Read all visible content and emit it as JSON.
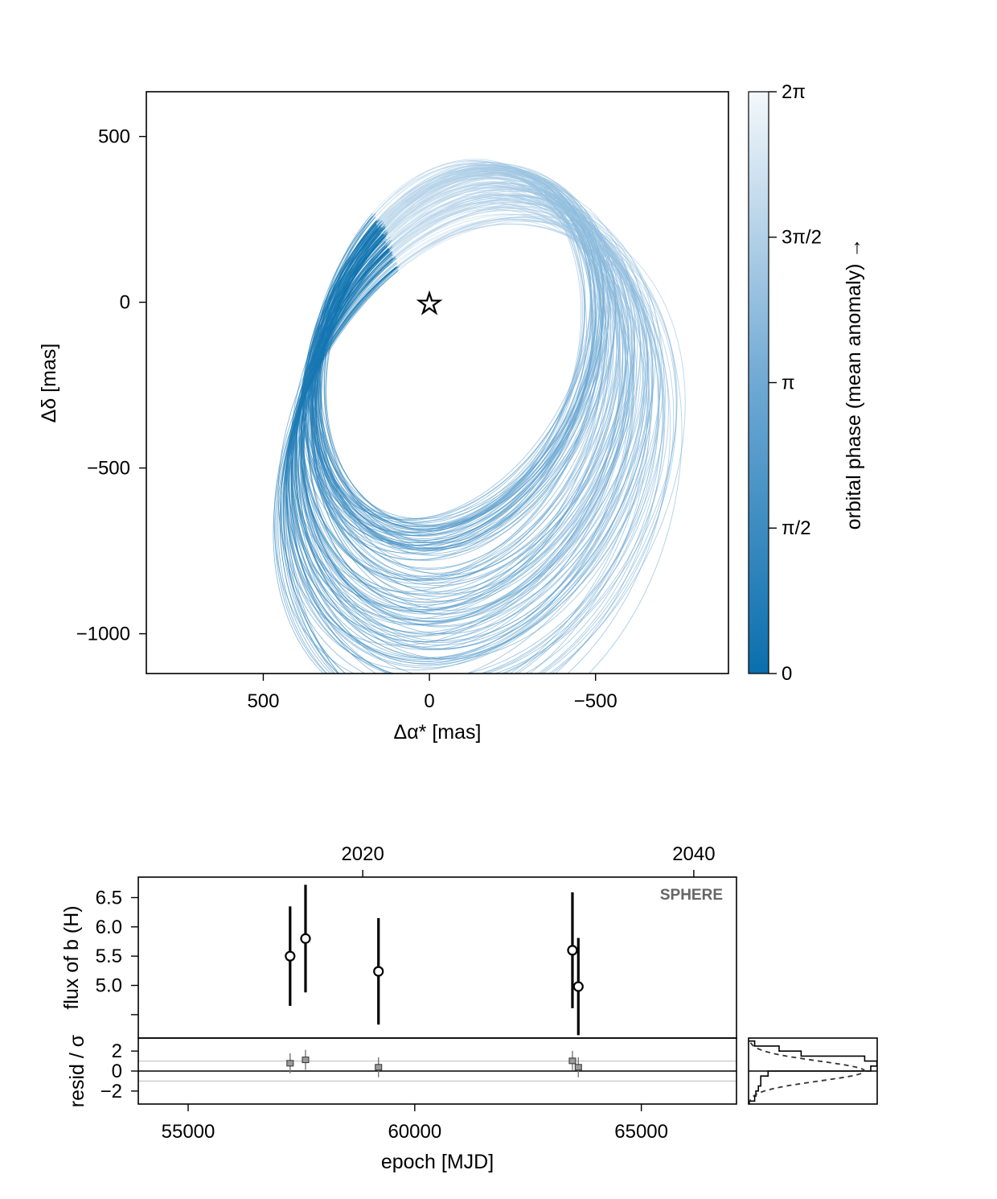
{
  "chart_data": [
    {
      "type": "line",
      "description_kind": "orbit-posterior-sky-plot",
      "xlabel": "Δα* [mas]",
      "ylabel": "Δδ [mas]",
      "x_reversed": true,
      "xlim": [
        852,
        -900
      ],
      "ylim": [
        -1120,
        635
      ],
      "xticks": [
        500,
        0,
        -500
      ],
      "xtick_labels": [
        "500",
        "0",
        "−500"
      ],
      "yticks": [
        500,
        0,
        -500,
        -1000
      ],
      "ytick_labels": [
        "500",
        "0",
        "−500",
        "−1000"
      ],
      "star_marker": {
        "x": 0,
        "y": 0,
        "symbol": "☆"
      },
      "orbit_family": {
        "count": 160,
        "center_x_range": [
          -170,
          -45
        ],
        "center_y_range": [
          -510,
          -120
        ],
        "semi_axis_a_range": [
          355,
          560
        ],
        "semi_axis_b_range": [
          560,
          780
        ],
        "tilt_deg_range": [
          12,
          28
        ],
        "start_point": {
          "x": 355,
          "y": 425
        }
      },
      "colorbar": {
        "label": "orbital phase (mean anomaly) →",
        "ticks": [
          "0",
          "π/2",
          "π",
          "3π/2",
          "2π"
        ],
        "tick_values": [
          0,
          1.5708,
          3.1416,
          4.7124,
          6.2832
        ],
        "color_low": "#0a6fad",
        "color_high": "#f4f8fb"
      }
    },
    {
      "type": "scatter",
      "description_kind": "photometry-timeseries",
      "instrument": "SPHERE",
      "ylabel": "flux of b (H)",
      "xlabel": "epoch [MJD]",
      "xlim": [
        53900,
        67100
      ],
      "ylim": [
        4.1,
        6.85
      ],
      "yticks": [
        6.5,
        6.0,
        5.5,
        5.0,
        4.5
      ],
      "ytick_labels": [
        "6.5",
        "6.0",
        "5.5",
        "5.0",
        ""
      ],
      "top_axis_ticks": [
        "2020",
        "2040"
      ],
      "top_axis_years": [
        2020,
        2040
      ],
      "points": [
        {
          "x": 57250,
          "y": 5.5,
          "err": 0.85
        },
        {
          "x": 57590,
          "y": 5.8,
          "err": 0.92
        },
        {
          "x": 59200,
          "y": 5.24,
          "err": 0.91
        },
        {
          "x": 63480,
          "y": 5.6,
          "err": 0.99
        },
        {
          "x": 63610,
          "y": 4.98,
          "err": 0.83
        }
      ]
    },
    {
      "type": "scatter",
      "description_kind": "residuals",
      "ylabel": "resid / σ",
      "xlabel": "epoch [MJD]",
      "xlim": [
        53900,
        67100
      ],
      "ylim": [
        -3.3,
        3.3
      ],
      "yticks": [
        2,
        0,
        -2
      ],
      "ytick_labels": [
        "2",
        "0",
        "−2"
      ],
      "xticks": [
        55000,
        60000,
        65000
      ],
      "xtick_labels": [
        "55000",
        "60000",
        "65000"
      ],
      "reference_lines": [
        1,
        0,
        -1
      ],
      "points": [
        {
          "x": 57250,
          "y": 0.78
        },
        {
          "x": 57590,
          "y": 1.12
        },
        {
          "x": 59200,
          "y": 0.38
        },
        {
          "x": 63480,
          "y": 1.02
        },
        {
          "x": 63610,
          "y": 0.38
        }
      ],
      "histogram": {
        "bin_edges": [
          -3,
          -2.5,
          -2,
          -1.5,
          -1,
          -0.5,
          0,
          0.5,
          1,
          1.5,
          2,
          2.5,
          3
        ],
        "counts": [
          0.05,
          0.06,
          0.08,
          0.1,
          0.1,
          0.16,
          1.0,
          1.05,
          0.95,
          0.43,
          0.25,
          0.05
        ]
      }
    }
  ]
}
